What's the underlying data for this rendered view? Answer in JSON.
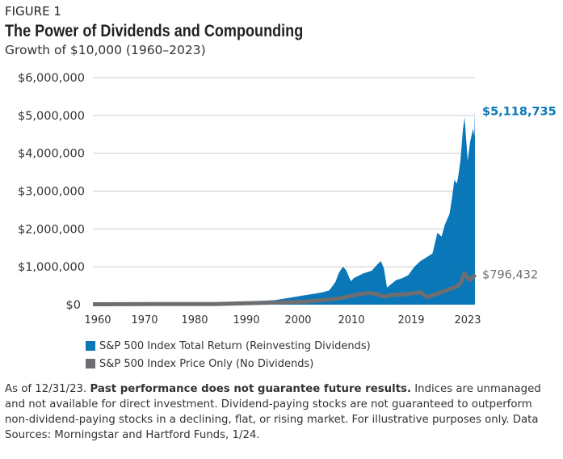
{
  "figure_label": "FIGURE 1",
  "chart_data": {
    "type": "area",
    "title": "The Power of Dividends and Compounding",
    "subtitle": "Growth of $10,000 (1960–2023)",
    "ylim": [
      0,
      6000000
    ],
    "y_ticks": [
      "$0",
      "$1,000,000",
      "$2,000,000",
      "$3,000,000",
      "$4,000,000",
      "$5,000,000",
      "$6,000,000"
    ],
    "x_ticks": [
      "1960",
      "1970",
      "1980",
      "1990",
      "2000",
      "2010",
      "2019",
      "2023"
    ],
    "grid": true,
    "legend_position": "bottom",
    "series": [
      {
        "name": "S&P 500 Index Total Return (Reinvesting Dividends)",
        "color": "#0a77b8",
        "style": "area",
        "end_label": "$5,118,735",
        "points": [
          [
            1960,
            10000
          ],
          [
            1965,
            17000
          ],
          [
            1970,
            20000
          ],
          [
            1975,
            22000
          ],
          [
            1980,
            40000
          ],
          [
            1985,
            75000
          ],
          [
            1990,
            120000
          ],
          [
            1992,
            170000
          ],
          [
            1995,
            250000
          ],
          [
            1997,
            300000
          ],
          [
            1998,
            330000
          ],
          [
            1999,
            380000
          ],
          [
            2000,
            600000
          ],
          [
            2000.5,
            820000
          ],
          [
            2001,
            950000
          ],
          [
            2001.3,
            1000000
          ],
          [
            2001.8,
            900000
          ],
          [
            2002.3,
            700000
          ],
          [
            2002.6,
            620000
          ],
          [
            2003,
            700000
          ],
          [
            2004.5,
            820000
          ],
          [
            2006,
            900000
          ],
          [
            2007,
            1080000
          ],
          [
            2007.5,
            1150000
          ],
          [
            2008,
            950000
          ],
          [
            2008.5,
            450000
          ],
          [
            2009,
            520000
          ],
          [
            2010,
            650000
          ],
          [
            2011,
            700000
          ],
          [
            2012,
            780000
          ],
          [
            2013,
            1000000
          ],
          [
            2014,
            1150000
          ],
          [
            2015,
            1250000
          ],
          [
            2016,
            1350000
          ],
          [
            2016.8,
            1900000
          ],
          [
            2017.5,
            1800000
          ],
          [
            2018,
            2100000
          ],
          [
            2018.8,
            2400000
          ],
          [
            2019.2,
            2800000
          ],
          [
            2019.6,
            3300000
          ],
          [
            2020,
            3200000
          ],
          [
            2020.2,
            3350000
          ],
          [
            2020.6,
            3800000
          ],
          [
            2021,
            4600000
          ],
          [
            2021.3,
            4950000
          ],
          [
            2021.8,
            3800000
          ],
          [
            2022.2,
            4300000
          ],
          [
            2022.7,
            4650000
          ],
          [
            2022.9,
            4450000
          ],
          [
            2023,
            5118735
          ]
        ]
      },
      {
        "name": "S&P 500 Index Price Only (No Dividends)",
        "color": "#6d6e71",
        "style": "line",
        "end_label": "$796,432",
        "points": [
          [
            1960,
            10000
          ],
          [
            1970,
            14000
          ],
          [
            1980,
            18000
          ],
          [
            1990,
            55000
          ],
          [
            1995,
            80000
          ],
          [
            2000,
            150000
          ],
          [
            2002,
            210000
          ],
          [
            2004,
            280000
          ],
          [
            2005.5,
            310000
          ],
          [
            2007,
            270000
          ],
          [
            2008,
            210000
          ],
          [
            2009,
            250000
          ],
          [
            2011,
            270000
          ],
          [
            2013,
            300000
          ],
          [
            2014,
            330000
          ],
          [
            2015,
            200000
          ],
          [
            2016,
            250000
          ],
          [
            2017,
            300000
          ],
          [
            2018,
            360000
          ],
          [
            2019,
            420000
          ],
          [
            2020,
            480000
          ],
          [
            2020.6,
            560000
          ],
          [
            2021,
            720000
          ],
          [
            2021.3,
            830000
          ],
          [
            2021.8,
            700000
          ],
          [
            2022.2,
            650000
          ],
          [
            2022.7,
            720000
          ],
          [
            2023,
            796432
          ]
        ]
      }
    ]
  },
  "footnote": {
    "prefix": "As of 12/31/23. ",
    "bold": "Past performance does not guarantee future results.",
    "rest": " Indices are unmanaged and not available for direct investment. Dividend-paying stocks are not guaranteed to outperform non-dividend-paying stocks in a declining, flat, or rising market. For illustrative purposes only. Data Sources: Morningstar and Hartford Funds, 1/24."
  }
}
